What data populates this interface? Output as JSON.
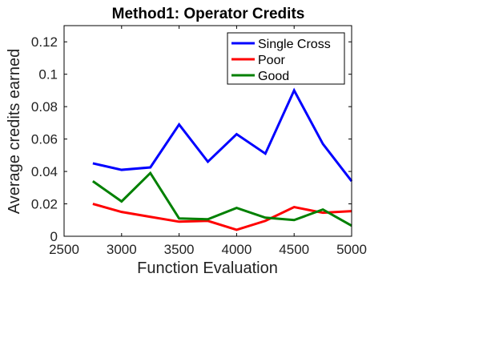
{
  "chart_data": {
    "type": "line",
    "title": "Method1: Operator Credits",
    "xlabel": "Function Evaluation",
    "ylabel": "Average credits earned",
    "xlim": [
      2500,
      5000
    ],
    "ylim": [
      0,
      0.13
    ],
    "xticks": [
      2500,
      3000,
      3500,
      4000,
      4500,
      5000
    ],
    "xtick_labels": [
      "2500",
      "3000",
      "3500",
      "4000",
      "4500",
      "5000"
    ],
    "yticks": [
      0,
      0.02,
      0.04,
      0.06,
      0.08,
      0.1,
      0.12
    ],
    "ytick_labels": [
      "0",
      "0.02",
      "0.04",
      "0.06",
      "0.08",
      "0.1",
      "0.12"
    ],
    "grid": false,
    "legend_position": "top-right",
    "x": [
      2750,
      3000,
      3250,
      3500,
      3750,
      4000,
      4250,
      4500,
      4750,
      5000
    ],
    "series": [
      {
        "name": "Single Cross",
        "color": "#0000ff",
        "values": [
          0.045,
          0.041,
          0.0425,
          0.069,
          0.046,
          0.063,
          0.051,
          0.09,
          0.057,
          0.034
        ]
      },
      {
        "name": "Poor",
        "color": "#ff0000",
        "values": [
          0.02,
          0.015,
          0.012,
          0.009,
          0.0095,
          0.004,
          0.0095,
          0.018,
          0.0145,
          0.0155
        ]
      },
      {
        "name": "Good",
        "color": "#008000",
        "values": [
          0.034,
          0.0215,
          0.039,
          0.011,
          0.0105,
          0.0175,
          0.0115,
          0.01,
          0.0165,
          0.0065
        ]
      }
    ]
  }
}
